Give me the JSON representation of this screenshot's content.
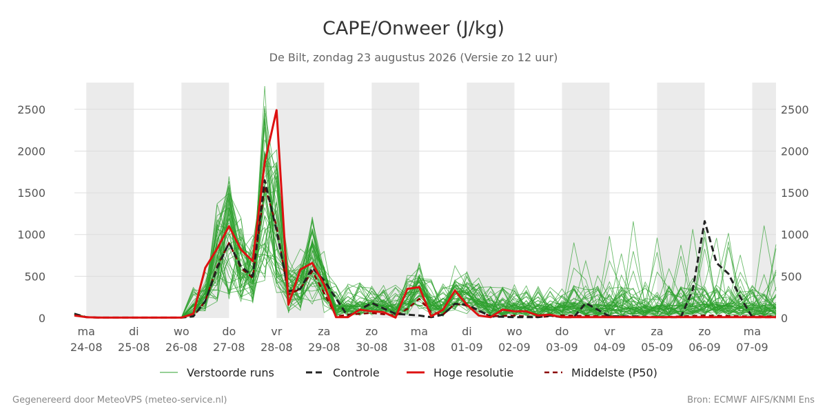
{
  "title": "CAPE/Onweer (J/kg)",
  "subtitle": "De Bilt, zondag 23 augustus 2026 (Versie zo 12 uur)",
  "footer_left": "Gegenereerd door MeteoVPS (meteo-service.nl)",
  "footer_right": "Bron: ECMWF AIFS/KNMI Ens",
  "chart_data": {
    "type": "line",
    "x_unit": "day index (0 = ma 24-08 00h)",
    "xlim": [
      -0.25,
      14.5
    ],
    "ylim": [
      0,
      2820
    ],
    "grid": true,
    "y_ticks": [
      0,
      500,
      1000,
      1500,
      2000,
      2500
    ],
    "x_ticks": [
      {
        "day": "ma",
        "date": "24-08"
      },
      {
        "day": "di",
        "date": "25-08"
      },
      {
        "day": "wo",
        "date": "26-08"
      },
      {
        "day": "do",
        "date": "27-08"
      },
      {
        "day": "vr",
        "date": "28-08"
      },
      {
        "day": "za",
        "date": "29-08"
      },
      {
        "day": "zo",
        "date": "30-08"
      },
      {
        "day": "ma",
        "date": "31-08"
      },
      {
        "day": "di",
        "date": "01-09"
      },
      {
        "day": "wo",
        "date": "02-09"
      },
      {
        "day": "do",
        "date": "03-09"
      },
      {
        "day": "vr",
        "date": "04-09"
      },
      {
        "day": "za",
        "date": "05-09"
      },
      {
        "day": "zo",
        "date": "06-09"
      },
      {
        "day": "ma",
        "date": "07-09"
      }
    ],
    "shaded_days": [
      0,
      2,
      4,
      6,
      8,
      10,
      12,
      14
    ],
    "legend": [
      "Verstoorde runs",
      "Controle",
      "Hoge resolutie",
      "Middelste (P50)"
    ],
    "colors": {
      "ensemble": "#2ca02c",
      "controle": "#222222",
      "hoge_resolutie": "#dd1111",
      "p50": "#8b0000",
      "shade": "#ebebeb",
      "grid": "#dddddd"
    },
    "series": [
      {
        "name": "Hoge resolutie",
        "style": "solid-red",
        "x": [
          -0.25,
          0,
          0.25,
          0.5,
          1,
          1.5,
          2,
          2.25,
          2.5,
          2.75,
          3,
          3.25,
          3.5,
          3.75,
          4,
          4.25,
          4.5,
          4.75,
          5,
          5.25,
          5.5,
          5.75,
          6,
          6.25,
          6.5,
          6.75,
          7,
          7.25,
          7.5,
          7.75,
          8,
          8.25,
          8.5,
          8.75,
          9,
          9.25,
          9.5,
          9.75,
          10,
          10.5,
          11,
          12,
          13,
          14,
          14.5
        ],
        "y": [
          30,
          10,
          5,
          5,
          5,
          5,
          5,
          50,
          600,
          830,
          1100,
          820,
          680,
          1860,
          2490,
          160,
          580,
          660,
          400,
          10,
          10,
          100,
          80,
          70,
          5,
          350,
          370,
          20,
          100,
          330,
          160,
          30,
          10,
          100,
          80,
          80,
          30,
          40,
          10,
          10,
          10,
          10,
          10,
          10,
          10
        ]
      },
      {
        "name": "Controle",
        "style": "dashed-black",
        "x": [
          -0.25,
          0,
          0.25,
          0.5,
          1,
          1.5,
          2,
          2.25,
          2.5,
          2.75,
          3,
          3.25,
          3.5,
          3.75,
          4,
          4.25,
          4.5,
          4.75,
          5,
          5.5,
          6,
          6.5,
          7,
          7.25,
          7.5,
          7.75,
          8,
          8.5,
          9,
          9.5,
          9.75,
          10,
          10.25,
          10.5,
          11,
          11.5,
          12,
          12.5,
          12.75,
          13,
          13.25,
          13.5,
          13.75,
          14,
          14.5
        ],
        "y": [
          50,
          10,
          5,
          5,
          5,
          5,
          5,
          20,
          200,
          600,
          900,
          620,
          500,
          1650,
          1050,
          320,
          350,
          600,
          450,
          20,
          180,
          50,
          30,
          10,
          40,
          170,
          160,
          20,
          10,
          10,
          30,
          10,
          10,
          180,
          20,
          20,
          10,
          10,
          340,
          1160,
          660,
          530,
          250,
          10,
          10
        ]
      },
      {
        "name": "Middelste (P50)",
        "style": "dashed-darkred",
        "x": [
          -0.25,
          0,
          0.5,
          1,
          2,
          2.25,
          2.5,
          2.75,
          3,
          3.25,
          3.5,
          3.75,
          4,
          4.25,
          4.5,
          4.75,
          5,
          5.25,
          5.5,
          6,
          6.5,
          6.75,
          7,
          7.25,
          7.5,
          7.75,
          8,
          8.5,
          9,
          9.5,
          10,
          11,
          12,
          13,
          14,
          14.5
        ],
        "y": [
          40,
          10,
          5,
          5,
          5,
          20,
          200,
          620,
          900,
          600,
          480,
          1580,
          1100,
          280,
          350,
          560,
          300,
          20,
          40,
          60,
          30,
          110,
          230,
          70,
          40,
          170,
          150,
          20,
          30,
          10,
          30,
          20,
          10,
          30,
          20,
          20
        ]
      }
    ]
  }
}
